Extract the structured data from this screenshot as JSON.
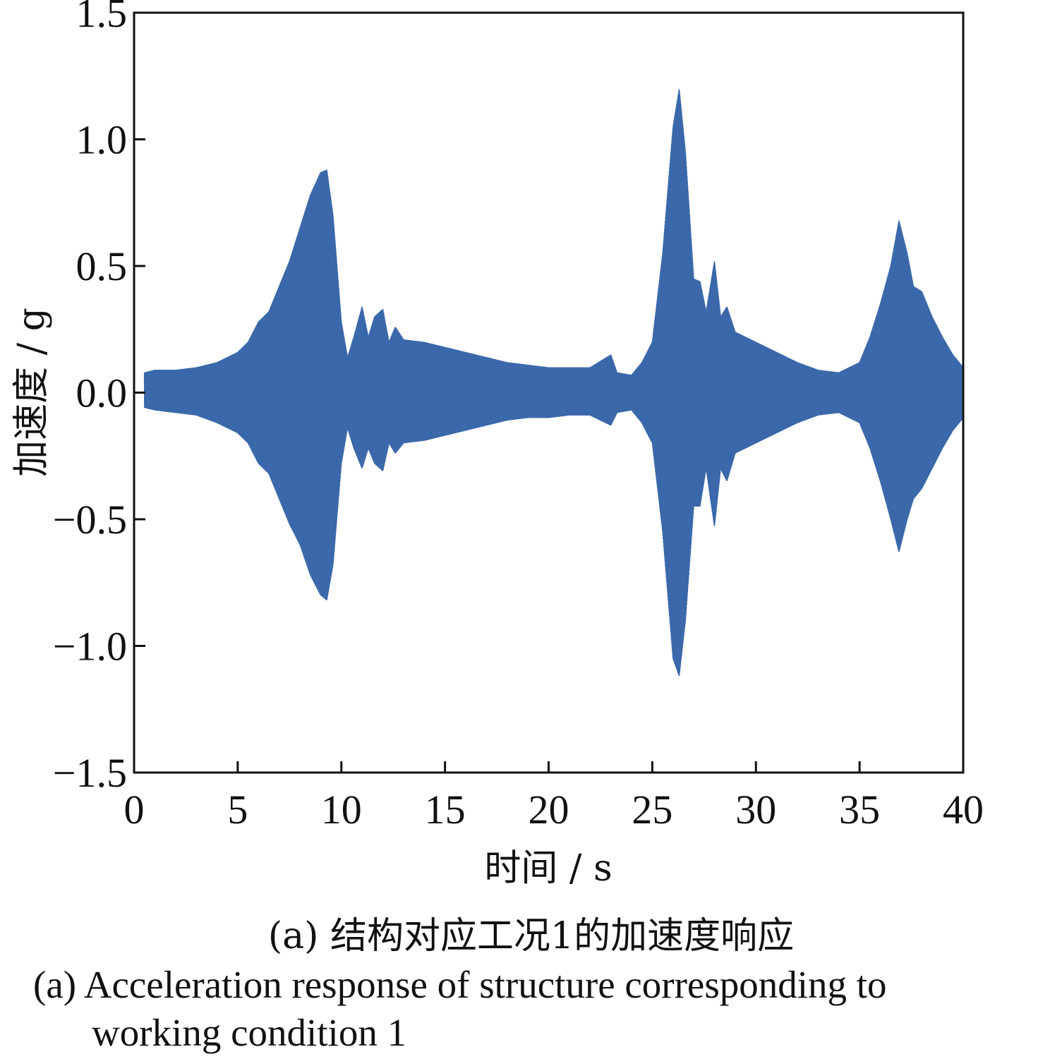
{
  "chart_data": {
    "type": "line",
    "xlabel": "时间 / s",
    "ylabel": "加速度 / g",
    "xlim": [
      0,
      40
    ],
    "ylim": [
      -1.5,
      1.5
    ],
    "xticks": [
      0,
      5,
      10,
      15,
      20,
      25,
      30,
      35,
      40
    ],
    "yticks": [
      -1.5,
      -1.0,
      -0.5,
      0.0,
      0.5,
      1.0,
      1.5
    ],
    "xtick_labels": [
      "0",
      "5",
      "10",
      "15",
      "20",
      "25",
      "30",
      "35",
      "40"
    ],
    "ytick_labels": [
      "−1.5",
      "−1.0",
      "−0.5",
      "0.0",
      "0.5",
      "1.0",
      "1.5"
    ],
    "grid": false,
    "series_color": "#3a68aa",
    "envelope": {
      "t": [
        0.5,
        1,
        2,
        3,
        4,
        4.5,
        5,
        5.5,
        6,
        6.5,
        7,
        7.5,
        8,
        8.5,
        9,
        9.3,
        9.6,
        10,
        10.3,
        10.6,
        11,
        11.3,
        11.6,
        12,
        12.3,
        12.6,
        13,
        14,
        15,
        16,
        17,
        18,
        19,
        20,
        21,
        22,
        23,
        23.3,
        24,
        24.5,
        25,
        25.5,
        26,
        26.3,
        26.6,
        27,
        27.3,
        27.6,
        28,
        28.3,
        28.6,
        29,
        30,
        31,
        32,
        33,
        34,
        35,
        35.5,
        36,
        36.5,
        36.9,
        37.3,
        37.6,
        38,
        38.5,
        39,
        39.5,
        40
      ],
      "upper": [
        0.08,
        0.09,
        0.09,
        0.1,
        0.12,
        0.14,
        0.16,
        0.2,
        0.28,
        0.32,
        0.42,
        0.52,
        0.65,
        0.78,
        0.87,
        0.88,
        0.7,
        0.28,
        0.14,
        0.22,
        0.34,
        0.22,
        0.3,
        0.33,
        0.2,
        0.26,
        0.21,
        0.2,
        0.18,
        0.16,
        0.14,
        0.12,
        0.11,
        0.1,
        0.1,
        0.1,
        0.15,
        0.08,
        0.07,
        0.12,
        0.2,
        0.55,
        1.05,
        1.2,
        0.95,
        0.45,
        0.44,
        0.32,
        0.52,
        0.3,
        0.34,
        0.24,
        0.2,
        0.16,
        0.12,
        0.09,
        0.08,
        0.12,
        0.22,
        0.35,
        0.5,
        0.68,
        0.55,
        0.42,
        0.4,
        0.3,
        0.22,
        0.15,
        0.1
      ],
      "lower": [
        -0.06,
        -0.07,
        -0.08,
        -0.09,
        -0.12,
        -0.14,
        -0.16,
        -0.2,
        -0.28,
        -0.32,
        -0.42,
        -0.52,
        -0.6,
        -0.72,
        -0.8,
        -0.82,
        -0.68,
        -0.28,
        -0.14,
        -0.22,
        -0.3,
        -0.22,
        -0.28,
        -0.31,
        -0.2,
        -0.24,
        -0.2,
        -0.19,
        -0.17,
        -0.15,
        -0.13,
        -0.11,
        -0.1,
        -0.1,
        -0.09,
        -0.09,
        -0.13,
        -0.08,
        -0.07,
        -0.12,
        -0.2,
        -0.55,
        -1.05,
        -1.12,
        -0.9,
        -0.45,
        -0.45,
        -0.3,
        -0.53,
        -0.3,
        -0.35,
        -0.24,
        -0.2,
        -0.16,
        -0.12,
        -0.09,
        -0.08,
        -0.12,
        -0.22,
        -0.35,
        -0.5,
        -0.63,
        -0.5,
        -0.42,
        -0.38,
        -0.3,
        -0.22,
        -0.15,
        -0.1
      ]
    }
  },
  "caption": {
    "cn": "(a) 结构对应工况1的加速度响应",
    "en_line1": "(a) Acceleration response of structure corresponding to",
    "en_line2": "working condition 1"
  }
}
